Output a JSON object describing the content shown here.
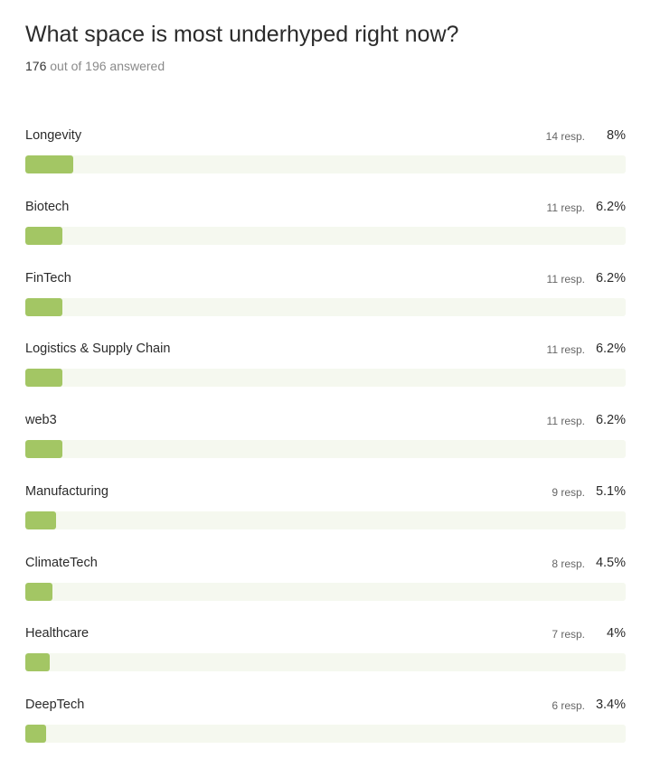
{
  "question": {
    "title": "What space is most underhyped right now?",
    "answered": "176",
    "answered_suffix": "out of 196 answered"
  },
  "chart_data": {
    "type": "bar",
    "orientation": "horizontal",
    "title": "What space is most underhyped right now?",
    "categories": [
      "Longevity",
      "Biotech",
      "FinTech",
      "Logistics & Supply Chain",
      "web3",
      "Manufacturing",
      "ClimateTech",
      "Healthcare",
      "DeepTech"
    ],
    "responses": [
      14,
      11,
      11,
      11,
      11,
      9,
      8,
      7,
      6
    ],
    "values": [
      8,
      6.2,
      6.2,
      6.2,
      6.2,
      5.1,
      4.5,
      4,
      3.4
    ],
    "response_labels": [
      "14 resp.",
      "11 resp.",
      "11 resp.",
      "11 resp.",
      "11 resp.",
      "9 resp.",
      "8 resp.",
      "7 resp.",
      "6 resp."
    ],
    "percent_labels": [
      "8%",
      "6.2%",
      "6.2%",
      "6.2%",
      "6.2%",
      "5.1%",
      "4.5%",
      "4%",
      "3.4%"
    ],
    "xlim": [
      0,
      100
    ],
    "grid": false,
    "legend": "none"
  },
  "colors": {
    "bar_fill": "#a3c664",
    "bar_track": "#f5f8ef",
    "text": "#2b2b2b",
    "muted_text": "#8a8a8a"
  }
}
